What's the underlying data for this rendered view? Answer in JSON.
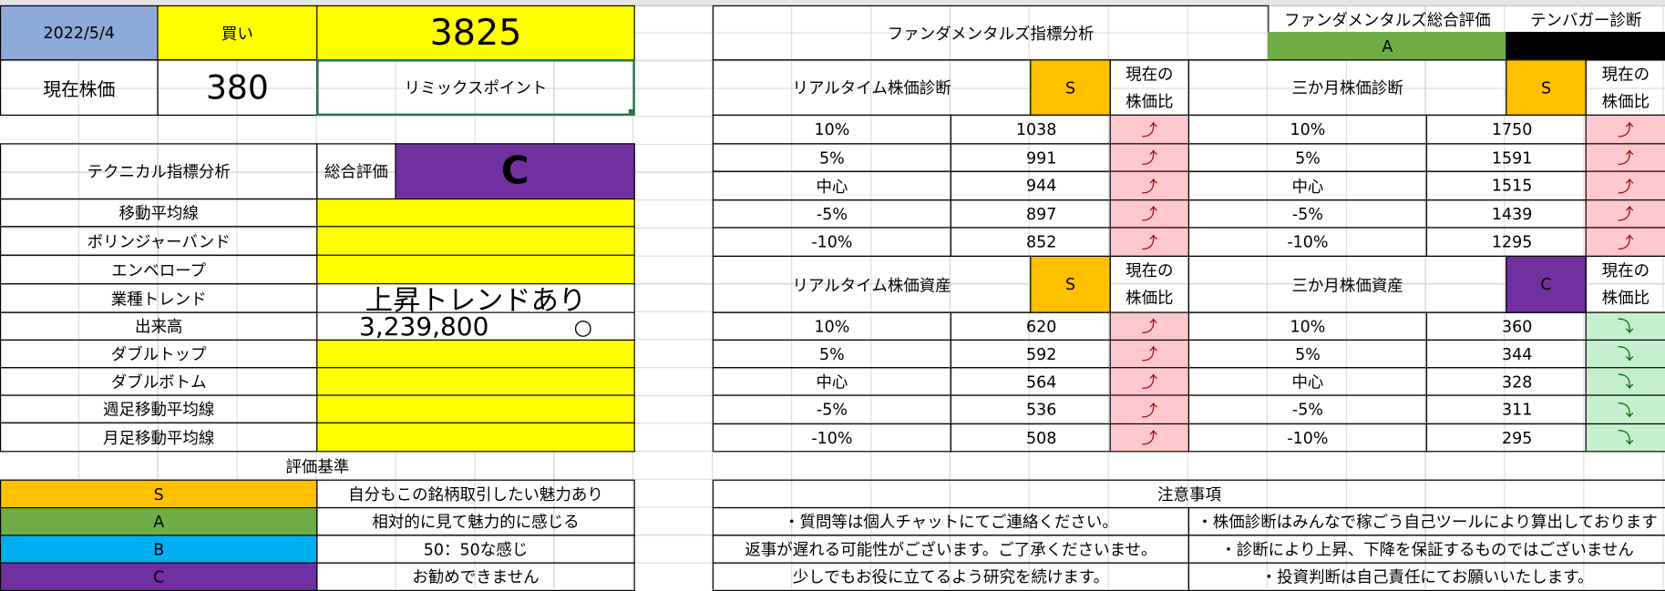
{
  "header": {
    "date": "2022/5/4",
    "action": "買い",
    "code": "3825",
    "price_label": "現在株価",
    "price": "380",
    "company": "リミックスポイント"
  },
  "technical": {
    "title": "テクニカル指標分析",
    "overall_label": "総合評価",
    "overall": "C",
    "rows": [
      {
        "label": "移動平均線"
      },
      {
        "label": "ボリンジャーバンド"
      },
      {
        "label": "エンベロープ"
      },
      {
        "label": "業種トレンド",
        "value": "上昇トレンドあり"
      },
      {
        "label": "出来高",
        "value": "3,239,800",
        "mark": "○"
      },
      {
        "label": "ダブルトップ"
      },
      {
        "label": "ダブルボトム"
      },
      {
        "label": "週足移動平均線"
      },
      {
        "label": "月足移動平均線"
      }
    ]
  },
  "criteria": {
    "title": "評価基準",
    "items": [
      {
        "grade": "S",
        "description": "自分もこの銘柄取引したい魅力あり",
        "color": "#ffc000"
      },
      {
        "grade": "A",
        "description": "相対的に見て魅力的に感じる",
        "color": "#70ad47"
      },
      {
        "grade": "B",
        "description": "50：50な感じ",
        "color": "#00b0f0"
      },
      {
        "grade": "C",
        "description": "お勧めできません",
        "color": "#7030a0"
      }
    ]
  },
  "fundamentals": {
    "title": "ファンダメンタルズ指標分析",
    "overall_label": "ファンダメンタルズ総合評価",
    "overall": "A",
    "overall_color": "#70ad47",
    "tenbagger_label": "テンバガー診断",
    "tenbagger_color": "#000000"
  },
  "diagnoses": [
    {
      "title": "リアルタイム株価診断",
      "grade": "S",
      "grade_color": "#ffc000",
      "ratio_label": [
        "現在の",
        "株価比"
      ],
      "trend_color": "#ffc7ce",
      "trend_text_color": "#9c0006",
      "rows": [
        {
          "level": "10%",
          "value": 1038,
          "trend": "⤴"
        },
        {
          "level": "5%",
          "value": 991,
          "trend": "⤴"
        },
        {
          "level": "中心",
          "value": 944,
          "trend": "⤴"
        },
        {
          "level": "-5%",
          "value": 897,
          "trend": "⤴"
        },
        {
          "level": "-10%",
          "value": 852,
          "trend": "⤴"
        }
      ]
    },
    {
      "title": "三か月株価診断",
      "grade": "S",
      "grade_color": "#ffc000",
      "ratio_label": [
        "現在の",
        "株価比"
      ],
      "trend_color": "#ffc7ce",
      "trend_text_color": "#9c0006",
      "rows": [
        {
          "level": "10%",
          "value": 1750,
          "trend": "⤴"
        },
        {
          "level": "5%",
          "value": 1591,
          "trend": "⤴"
        },
        {
          "level": "中心",
          "value": 1515,
          "trend": "⤴"
        },
        {
          "level": "-5%",
          "value": 1439,
          "trend": "⤴"
        },
        {
          "level": "-10%",
          "value": 1295,
          "trend": "⤴"
        }
      ]
    },
    {
      "title": "リアルタイム株価資産",
      "grade": "S",
      "grade_color": "#ffc000",
      "ratio_label": [
        "現在の",
        "株価比"
      ],
      "trend_color": "#ffc7ce",
      "trend_text_color": "#9c0006",
      "rows": [
        {
          "level": "10%",
          "value": 620,
          "trend": "⤴"
        },
        {
          "level": "5%",
          "value": 592,
          "trend": "⤴"
        },
        {
          "level": "中心",
          "value": 564,
          "trend": "⤴"
        },
        {
          "level": "-5%",
          "value": 536,
          "trend": "⤴"
        },
        {
          "level": "-10%",
          "value": 508,
          "trend": "⤴"
        }
      ]
    },
    {
      "title": "三か月株価資産",
      "grade": "C",
      "grade_color": "#7030a0",
      "ratio_label": [
        "現在の",
        "株価比"
      ],
      "trend_color": "#c6efce",
      "trend_text_color": "#006100",
      "rows": [
        {
          "level": "10%",
          "value": 360,
          "trend": "⤵"
        },
        {
          "level": "5%",
          "value": 344,
          "trend": "⤵"
        },
        {
          "level": "中心",
          "value": 328,
          "trend": "⤵"
        },
        {
          "level": "-5%",
          "value": 311,
          "trend": "⤵"
        },
        {
          "level": "-10%",
          "value": 295,
          "trend": "⤵"
        }
      ]
    }
  ],
  "notes": {
    "title": "注意事項",
    "left": [
      "・質問等は個人チャットにてご連絡ください。",
      "返事が遅れる可能性がございます。ご了承くださいませ。",
      "少しでもお役に立てるよう研究を続けます。"
    ],
    "right": [
      "・株価診断はみんなで稼ごう自己ツールにより算出しております",
      "・診断により上昇、下降を保証するものではございません",
      "・投資判断は自己責任にてお願いいたします。"
    ]
  }
}
